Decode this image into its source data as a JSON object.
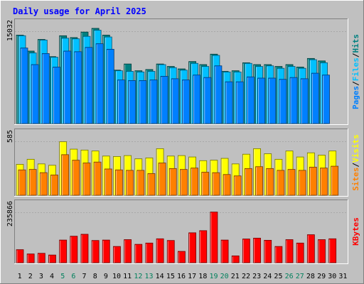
{
  "chart_data": {
    "type": "bar",
    "title": "Daily usage for April 2025",
    "colors": {
      "hits": "#008080",
      "files": "#00c0ff",
      "pages": "#0080ff",
      "visits": "#ffff00",
      "sites": "#ff8000",
      "kbytes": "#ff0000",
      "title": "#0000ff",
      "weekend_day": "#00805c",
      "weekday": "#000000"
    },
    "categories": [
      "1",
      "2",
      "3",
      "4",
      "5",
      "6",
      "7",
      "8",
      "9",
      "10",
      "11",
      "12",
      "13",
      "14",
      "15",
      "16",
      "17",
      "18",
      "19",
      "20",
      "21",
      "22",
      "23",
      "24",
      "25",
      "26",
      "27",
      "28",
      "29",
      "30",
      "31"
    ],
    "weekend_days": [
      "5",
      "6",
      "12",
      "13",
      "19",
      "20",
      "26",
      "27"
    ],
    "panels": [
      {
        "id": "requests",
        "ytick": "15032",
        "ymax": 15032,
        "legend": [
          "Pages",
          "/",
          "Files",
          "/",
          "Hits"
        ],
        "series": [
          {
            "name": "Hits",
            "values": [
              14400,
              11800,
              13700,
              10900,
              14300,
              14000,
              14900,
              15500,
              14400,
              8700,
              9700,
              8600,
              8800,
              9700,
              9300,
              8900,
              10100,
              9600,
              11300,
              8500,
              8600,
              9900,
              9600,
              9600,
              9300,
              9600,
              9200,
              10600,
              10200,
              null,
              null
            ]
          },
          {
            "name": "Files",
            "values": [
              14300,
              11500,
              13600,
              10800,
              13900,
              13800,
              14200,
              15200,
              14100,
              8600,
              8500,
              8400,
              8500,
              9600,
              9100,
              8700,
              9800,
              9300,
              11100,
              8400,
              8400,
              9800,
              9300,
              9400,
              9000,
              9300,
              9000,
              10400,
              9900,
              null,
              null
            ]
          },
          {
            "name": "Pages",
            "values": [
              12300,
              9600,
              11400,
              9200,
              11800,
              11700,
              12400,
              13000,
              12100,
              7100,
              7000,
              7000,
              7100,
              7700,
              7300,
              7100,
              7900,
              7500,
              9400,
              6800,
              6800,
              7600,
              7400,
              7400,
              7200,
              7500,
              7300,
              8200,
              7900,
              null,
              null
            ]
          }
        ]
      },
      {
        "id": "visitors",
        "ytick": "585",
        "ymax": 585,
        "legend": [
          "Sites",
          "/",
          "Visits"
        ],
        "series": [
          {
            "name": "Visits",
            "values": [
              335,
              390,
              340,
              325,
              580,
              500,
              490,
              480,
              425,
              420,
              430,
              395,
              405,
              505,
              425,
              430,
              415,
              375,
              380,
              400,
              340,
              445,
              505,
              450,
              390,
              480,
              415,
              460,
              435,
              480,
              null
            ]
          },
          {
            "name": "Sites",
            "values": [
              275,
              280,
              245,
              220,
              440,
              380,
              350,
              360,
              285,
              275,
              270,
              270,
              235,
              350,
              290,
              280,
              295,
              250,
              245,
              225,
              210,
              290,
              310,
              290,
              270,
              280,
              270,
              305,
              295,
              315,
              null
            ]
          }
        ]
      },
      {
        "id": "traffic",
        "ytick": "235866",
        "ymax": 235866,
        "legend": [
          "KBytes"
        ],
        "series": [
          {
            "name": "KBytes",
            "values": [
              61000,
              41000,
              44000,
              36000,
              106000,
              124000,
              133000,
              104000,
              106000,
              76000,
              108000,
              86000,
              92000,
              112000,
              104000,
              53000,
              140000,
              150000,
              237000,
              106000,
              32000,
              111000,
              115000,
              105000,
              76000,
              108000,
              92000,
              131000,
              108000,
              112000,
              null
            ]
          }
        ]
      }
    ]
  }
}
